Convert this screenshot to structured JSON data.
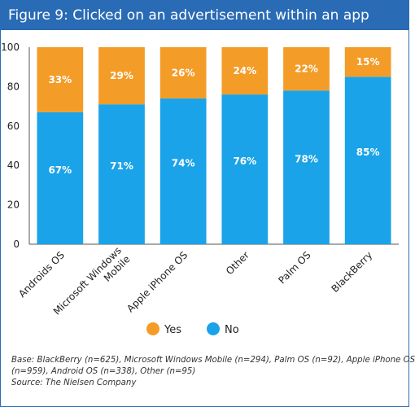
{
  "title": "Figure 9: Clicked on an advertisement within an app",
  "colors": {
    "title_bar": "#2a6bb5",
    "yes": "#f39c28",
    "no": "#1aa3e8",
    "axis_text": "#222222"
  },
  "chart_data": {
    "type": "bar",
    "stacked": true,
    "categories": [
      "Androids OS",
      "Microsoft Windows Mobile",
      "Apple iPhone OS",
      "Other",
      "Palm OS",
      "BlackBerry"
    ],
    "series": [
      {
        "name": "No",
        "values": [
          67,
          71,
          74,
          76,
          78,
          85
        ],
        "labels": [
          "67%",
          "71%",
          "74%",
          "76%",
          "78%",
          "85%"
        ]
      },
      {
        "name": "Yes",
        "values": [
          33,
          29,
          26,
          24,
          22,
          15
        ],
        "labels": [
          "33%",
          "29%",
          "26%",
          "24%",
          "22%",
          "15%"
        ]
      }
    ],
    "ylim": [
      0,
      100
    ],
    "yticks": [
      0,
      20,
      40,
      60,
      80,
      100
    ],
    "xlabel": "",
    "ylabel": "",
    "legend": {
      "placement": "bottom",
      "entries": [
        "Yes",
        "No"
      ]
    }
  },
  "notes": {
    "base_line1": "Base: BlackBerry (n=625), Microsoft Windows Mobile (n=294), Palm OS (n=92), Apple iPhone OS",
    "base_line2": "(n=959), Android OS (n=338), Other (n=95)",
    "source": "Source: The Nielsen Company"
  }
}
